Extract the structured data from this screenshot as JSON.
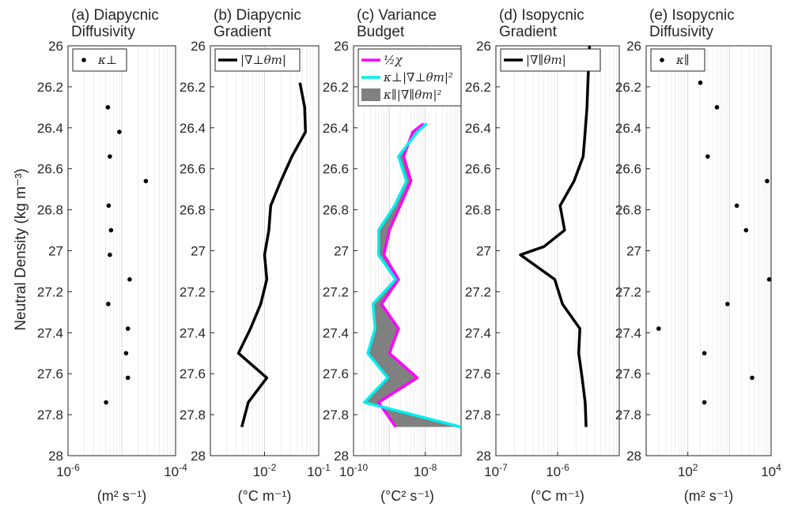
{
  "figure": {
    "ylabel": "Neutral Density (kg m⁻³)",
    "ylim": [
      26,
      28
    ],
    "yticks": [
      "26",
      "26.2",
      "26.4",
      "26.6",
      "26.8",
      "27",
      "27.2",
      "27.4",
      "27.6",
      "27.8",
      "28"
    ]
  },
  "chart_data": [
    {
      "type": "scatter",
      "title": [
        "(a) Diapycnic",
        "Diffusivity"
      ],
      "xlabel": "(m² s⁻¹)",
      "xscale": "log",
      "xlim": [
        1e-06,
        0.0001
      ],
      "xticks": [
        {
          "v": 1e-06,
          "base": "10",
          "exp": "-6"
        },
        {
          "v": 0.0001,
          "base": "10",
          "exp": "-4"
        }
      ],
      "legend": [
        {
          "label": "κ⊥",
          "style": "dot",
          "color": "#000000"
        }
      ],
      "series": [
        {
          "name": "κ⊥",
          "color": "#000000",
          "style": "dot",
          "x": [
            5.5e-06,
            9e-06,
            6e-06,
            2.8e-05,
            5.7e-06,
            6.3e-06,
            6e-06,
            1.4e-05,
            5.6e-06,
            1.3e-05,
            1.2e-05,
            1.3e-05,
            5.1e-06
          ],
          "y": [
            26.3,
            26.42,
            26.54,
            26.66,
            26.78,
            26.9,
            27.02,
            27.14,
            27.26,
            27.38,
            27.5,
            27.62,
            27.74
          ]
        }
      ]
    },
    {
      "type": "line",
      "title": [
        "(b) Diapycnic",
        "Gradient"
      ],
      "xlabel": "(°C m⁻¹)",
      "xscale": "log",
      "xlim": [
        0.001,
        0.1
      ],
      "xticks": [
        {
          "v": 0.01,
          "base": "10",
          "exp": "-2"
        },
        {
          "v": 0.1,
          "base": "10",
          "exp": "-1"
        }
      ],
      "legend": [
        {
          "label": "|∇⊥θm|",
          "style": "line",
          "color": "#000000"
        }
      ],
      "series": [
        {
          "name": "|∇⊥θm|",
          "color": "#000000",
          "style": "line",
          "x": [
            0.045,
            0.055,
            0.057,
            0.032,
            0.02,
            0.013,
            0.012,
            0.01,
            0.011,
            0.0085,
            0.0055,
            0.0033,
            0.011,
            0.005,
            0.0038
          ],
          "y": [
            26.18,
            26.3,
            26.42,
            26.54,
            26.66,
            26.78,
            26.9,
            27.02,
            27.14,
            27.26,
            27.38,
            27.5,
            27.62,
            27.74,
            27.86
          ]
        }
      ]
    },
    {
      "type": "line",
      "title": [
        "(c) Variance",
        "Budget"
      ],
      "xlabel": "(°C² s⁻¹)",
      "xscale": "log",
      "xlim": [
        1e-10,
        1e-07
      ],
      "xticks": [
        {
          "v": 1e-10,
          "base": "10",
          "exp": "-10"
        },
        {
          "v": 1e-08,
          "base": "10",
          "exp": "-8"
        }
      ],
      "legend": [
        {
          "label": "½χ",
          "style": "line",
          "color": "#ff00ff"
        },
        {
          "label": "κ⊥|∇⊥θm|²",
          "style": "line",
          "color": "#00eeee"
        },
        {
          "label": "κ∥|∇∥θm|²",
          "style": "fill",
          "color": "#808080"
        }
      ],
      "series": [
        {
          "name": "½χ",
          "color": "#ff00ff",
          "style": "line",
          "x": [
            9e-09,
            4.5e-09,
            2.5e-09,
            4e-09,
            2e-09,
            1e-09,
            7e-10,
            1.8e-09,
            6e-10,
            1.8e-09,
            1e-09,
            6e-09,
            5e-10,
            1.5e-09
          ],
          "y": [
            26.38,
            26.42,
            26.54,
            26.66,
            26.78,
            26.9,
            27.02,
            27.14,
            27.26,
            27.38,
            27.5,
            27.62,
            27.74,
            27.86
          ]
        },
        {
          "name": "κ⊥|∇⊥θm|²",
          "color": "#00eeee",
          "style": "line",
          "x": [
            1.1e-08,
            6e-09,
            1.8e-09,
            3e-09,
            1.4e-09,
            5e-10,
            5e-10,
            1.5e-09,
            3.5e-10,
            4e-10,
            2.5e-10,
            9e-10,
            2e-10,
            1e-07
          ],
          "y": [
            26.38,
            26.42,
            26.54,
            26.66,
            26.78,
            26.9,
            27.02,
            27.14,
            27.26,
            27.38,
            27.5,
            27.62,
            27.74,
            27.86
          ]
        }
      ]
    },
    {
      "type": "line",
      "title": [
        "(d) Isopycnic",
        "Gradient"
      ],
      "xlabel": "(°C m⁻¹)",
      "xscale": "log",
      "xlim": [
        1e-07,
        1e-05
      ],
      "xticks": [
        {
          "v": 1e-07,
          "base": "10",
          "exp": "-7"
        },
        {
          "v": 1e-06,
          "base": "10",
          "exp": "-6"
        }
      ],
      "legend": [
        {
          "label": "|∇∥θm|",
          "style": "line",
          "color": "#000000"
        }
      ],
      "series": [
        {
          "name": "|∇∥θm|",
          "color": "#000000",
          "style": "line",
          "x": [
            3.3e-06,
            3.1e-06,
            3e-06,
            2.8e-06,
            2.6e-06,
            1.85e-06,
            1.1e-06,
            1.3e-06,
            6e-07,
            2.5e-07,
            9e-07,
            1.2e-06,
            2.3e-06,
            2.2e-06,
            2.5e-06,
            2.8e-06,
            2.9e-06
          ],
          "y": [
            26.0,
            26.18,
            26.3,
            26.42,
            26.54,
            26.66,
            26.78,
            26.9,
            26.98,
            27.02,
            27.14,
            27.26,
            27.38,
            27.5,
            27.62,
            27.74,
            27.86
          ]
        }
      ]
    },
    {
      "type": "scatter",
      "title": [
        "(e) Isopycnic",
        "Diffusivity"
      ],
      "xlabel": "(m² s⁻¹)",
      "xscale": "log",
      "xlim": [
        10,
        10000
      ],
      "xticks": [
        {
          "v": 100,
          "base": "10",
          "exp": "2"
        },
        {
          "v": 10000,
          "base": "10",
          "exp": "4"
        }
      ],
      "legend": [
        {
          "label": "κ∥",
          "style": "dot",
          "color": "#000000"
        }
      ],
      "series": [
        {
          "name": "κ∥",
          "color": "#000000",
          "style": "dot",
          "x": [
            200,
            500,
            300,
            8000,
            1500,
            2500,
            9000,
            900,
            20,
            250,
            3500,
            250
          ],
          "y": [
            26.18,
            26.3,
            26.54,
            26.66,
            26.78,
            26.9,
            27.14,
            27.26,
            27.38,
            27.5,
            27.62,
            27.74
          ]
        }
      ]
    }
  ]
}
